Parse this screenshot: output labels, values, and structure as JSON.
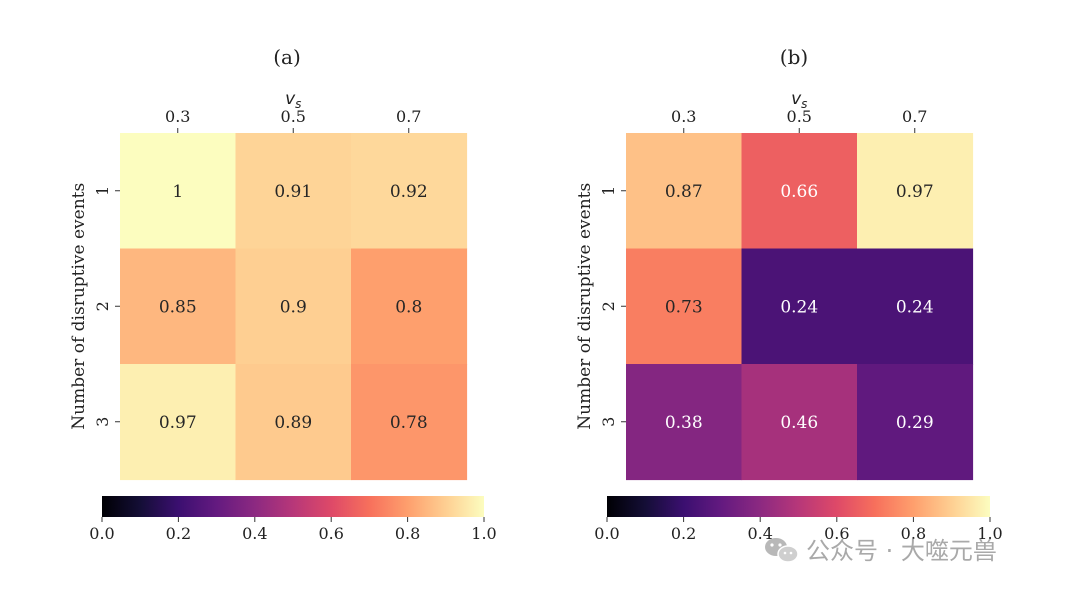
{
  "chart_data": [
    {
      "type": "heatmap",
      "title": "(a)",
      "xlabel": "v",
      "xlabel_sub": "s",
      "ylabel": "Number of disruptive events",
      "x": [
        "0.3",
        "0.5",
        "0.7"
      ],
      "y": [
        "1",
        "2",
        "3"
      ],
      "values": [
        [
          1,
          0.91,
          0.92
        ],
        [
          0.85,
          0.9,
          0.8
        ],
        [
          0.97,
          0.89,
          0.78
        ]
      ],
      "cell_labels": [
        [
          "1",
          "0.91",
          "0.92"
        ],
        [
          "0.85",
          "0.9",
          "0.8"
        ],
        [
          "0.97",
          "0.89",
          "0.78"
        ]
      ],
      "colormap": "magma",
      "colorbar": {
        "orientation": "horizontal",
        "range": [
          0.0,
          1.0
        ],
        "ticks": [
          "0.0",
          "0.2",
          "0.4",
          "0.6",
          "0.8",
          "1.0"
        ]
      }
    },
    {
      "type": "heatmap",
      "title": "(b)",
      "xlabel": "v",
      "xlabel_sub": "s",
      "ylabel": "Number of disruptive events",
      "x": [
        "0.3",
        "0.5",
        "0.7"
      ],
      "y": [
        "1",
        "2",
        "3"
      ],
      "values": [
        [
          0.87,
          0.66,
          0.97
        ],
        [
          0.73,
          0.24,
          0.24
        ],
        [
          0.38,
          0.46,
          0.29
        ]
      ],
      "cell_labels": [
        [
          "0.87",
          "0.66",
          "0.97"
        ],
        [
          "0.73",
          "0.24",
          "0.24"
        ],
        [
          "0.38",
          "0.46",
          "0.29"
        ]
      ],
      "colormap": "magma",
      "colorbar": {
        "orientation": "horizontal",
        "range": [
          0.0,
          1.0
        ],
        "ticks": [
          "0.0",
          "0.2",
          "0.4",
          "0.6",
          "0.8",
          "1.0"
        ]
      }
    }
  ],
  "watermark": {
    "text": "公众号 · 大噬元兽",
    "icon": "wechat-icon"
  }
}
